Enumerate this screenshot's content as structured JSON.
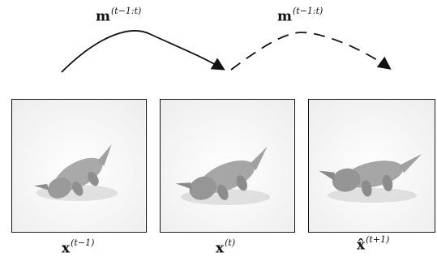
{
  "motion_labels": [
    {
      "base": "m",
      "sup": "(t−1:t)"
    },
    {
      "base": "m",
      "sup": "(t−1:t)"
    }
  ],
  "frame_captions": [
    {
      "base": "x",
      "sup": "(t−1)"
    },
    {
      "base": "x",
      "sup": "(t)"
    },
    {
      "base": "x̂",
      "sup": "(t+1)"
    }
  ]
}
